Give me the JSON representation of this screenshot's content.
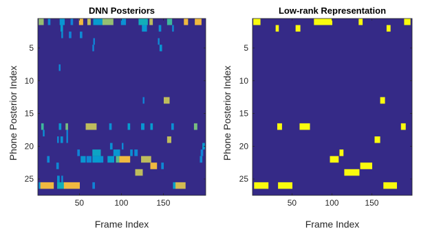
{
  "chart_data": [
    {
      "type": "heatmap",
      "title": "DNN Posteriors",
      "xlabel": "Frame Index",
      "ylabel": "Phone Posterior Index",
      "xlim": [
        1,
        200
      ],
      "ylim": [
        1,
        27
      ],
      "y_reversed": true,
      "x_ticks": [
        50,
        100,
        150
      ],
      "y_ticks": [
        5,
        10,
        15,
        20,
        25
      ],
      "colormap": "parula",
      "background_color": "#352a87",
      "cells": [
        {
          "row": 1,
          "x0": 2,
          "x1": 7,
          "v": 0.85
        },
        {
          "row": 1,
          "x0": 13,
          "x1": 15,
          "v": 0.35
        },
        {
          "row": 1,
          "x0": 27,
          "x1": 32,
          "v": 0.45
        },
        {
          "row": 1,
          "x0": 40,
          "x1": 42,
          "v": 0.3
        },
        {
          "row": 1,
          "x0": 50,
          "x1": 54,
          "v": 0.95
        },
        {
          "row": 1,
          "x0": 60,
          "x1": 63,
          "v": 0.9
        },
        {
          "row": 1,
          "x0": 67,
          "x1": 78,
          "v": 0.5
        },
        {
          "row": 1,
          "x0": 78,
          "x1": 90,
          "v": 0.85
        },
        {
          "row": 1,
          "x0": 100,
          "x1": 105,
          "v": 0.4
        },
        {
          "row": 1,
          "x0": 121,
          "x1": 131,
          "v": 0.6
        },
        {
          "row": 1,
          "x0": 134,
          "x1": 137,
          "v": 0.9
        },
        {
          "row": 1,
          "x0": 155,
          "x1": 160,
          "v": 0.7
        },
        {
          "row": 1,
          "x0": 175,
          "x1": 179,
          "v": 0.95
        },
        {
          "row": 1,
          "x0": 188,
          "x1": 195,
          "v": 0.95
        },
        {
          "row": 2,
          "x0": 28,
          "x1": 30,
          "v": 0.5
        },
        {
          "row": 2,
          "x0": 125,
          "x1": 130,
          "v": 0.45
        },
        {
          "row": 2,
          "x0": 145,
          "x1": 147,
          "v": 0.4
        },
        {
          "row": 2,
          "x0": 161,
          "x1": 162,
          "v": 0.35
        },
        {
          "row": 3,
          "x0": 29,
          "x1": 30,
          "v": 0.4
        },
        {
          "row": 3,
          "x0": 38,
          "x1": 40,
          "v": 0.3
        },
        {
          "row": 3,
          "x0": 51,
          "x1": 53,
          "v": 0.35
        },
        {
          "row": 4,
          "x0": 67,
          "x1": 68,
          "v": 0.3
        },
        {
          "row": 4,
          "x0": 144,
          "x1": 145,
          "v": 0.35
        },
        {
          "row": 5,
          "x0": 66,
          "x1": 67,
          "v": 0.3
        },
        {
          "row": 5,
          "x0": 146,
          "x1": 148,
          "v": 0.45
        },
        {
          "row": 8,
          "x0": 26,
          "x1": 27,
          "v": 0.35
        },
        {
          "row": 13,
          "x0": 126,
          "x1": 127,
          "v": 0.3
        },
        {
          "row": 13,
          "x0": 151,
          "x1": 157,
          "v": 0.9
        },
        {
          "row": 17,
          "x0": 5,
          "x1": 7,
          "v": 0.7
        },
        {
          "row": 17,
          "x0": 26,
          "x1": 28,
          "v": 0.45
        },
        {
          "row": 17,
          "x0": 34,
          "x1": 36,
          "v": 0.8
        },
        {
          "row": 17,
          "x0": 58,
          "x1": 70,
          "v": 0.9
        },
        {
          "row": 17,
          "x0": 86,
          "x1": 88,
          "v": 0.4
        },
        {
          "row": 17,
          "x0": 108,
          "x1": 110,
          "v": 0.5
        },
        {
          "row": 17,
          "x0": 124,
          "x1": 127,
          "v": 0.45
        },
        {
          "row": 17,
          "x0": 135,
          "x1": 137,
          "v": 0.5
        },
        {
          "row": 17,
          "x0": 160,
          "x1": 162,
          "v": 0.4
        },
        {
          "row": 17,
          "x0": 187,
          "x1": 190,
          "v": 0.8
        },
        {
          "row": 18,
          "x0": 7,
          "x1": 8,
          "v": 0.4
        },
        {
          "row": 18,
          "x0": 35,
          "x1": 36,
          "v": 0.3
        },
        {
          "row": 19,
          "x0": 24,
          "x1": 25,
          "v": 0.35
        },
        {
          "row": 19,
          "x0": 28,
          "x1": 30,
          "v": 0.4
        },
        {
          "row": 19,
          "x0": 35,
          "x1": 36,
          "v": 0.35
        },
        {
          "row": 19,
          "x0": 155,
          "x1": 159,
          "v": 0.9
        },
        {
          "row": 20,
          "x0": 87,
          "x1": 89,
          "v": 0.4
        },
        {
          "row": 20,
          "x0": 101,
          "x1": 102,
          "v": 0.35
        },
        {
          "row": 20,
          "x0": 197,
          "x1": 199,
          "v": 0.5
        },
        {
          "row": 21,
          "x0": 48,
          "x1": 50,
          "v": 0.3
        },
        {
          "row": 21,
          "x0": 66,
          "x1": 75,
          "v": 0.55
        },
        {
          "row": 21,
          "x0": 91,
          "x1": 98,
          "v": 0.45
        },
        {
          "row": 21,
          "x0": 111,
          "x1": 113,
          "v": 0.4
        },
        {
          "row": 21,
          "x0": 116,
          "x1": 119,
          "v": 0.35
        },
        {
          "row": 21,
          "x0": 195,
          "x1": 197,
          "v": 0.3
        },
        {
          "row": 22,
          "x0": 12,
          "x1": 14,
          "v": 0.35
        },
        {
          "row": 22,
          "x0": 52,
          "x1": 57,
          "v": 0.45
        },
        {
          "row": 22,
          "x0": 59,
          "x1": 64,
          "v": 0.35
        },
        {
          "row": 22,
          "x0": 66,
          "x1": 75,
          "v": 0.5
        },
        {
          "row": 22,
          "x0": 75,
          "x1": 78,
          "v": 0.4
        },
        {
          "row": 22,
          "x0": 84,
          "x1": 91,
          "v": 0.5
        },
        {
          "row": 22,
          "x0": 94,
          "x1": 97,
          "v": 0.75
        },
        {
          "row": 22,
          "x0": 98,
          "x1": 110,
          "v": 0.95
        },
        {
          "row": 22,
          "x0": 124,
          "x1": 135,
          "v": 0.9
        },
        {
          "row": 22,
          "x0": 194,
          "x1": 196,
          "v": 0.35
        },
        {
          "row": 23,
          "x0": 23,
          "x1": 25,
          "v": 0.35
        },
        {
          "row": 23,
          "x0": 135,
          "x1": 142,
          "v": 0.95
        },
        {
          "row": 23,
          "x0": 148,
          "x1": 150,
          "v": 0.35
        },
        {
          "row": 24,
          "x0": 117,
          "x1": 125,
          "v": 0.9
        },
        {
          "row": 25,
          "x0": 24,
          "x1": 26,
          "v": 0.4
        },
        {
          "row": 25,
          "x0": 29,
          "x1": 30,
          "v": 0.35
        },
        {
          "row": 26,
          "x0": 2,
          "x1": 4,
          "v": 0.45
        },
        {
          "row": 26,
          "x0": 4,
          "x1": 19,
          "v": 0.95
        },
        {
          "row": 26,
          "x0": 24,
          "x1": 32,
          "v": 0.6
        },
        {
          "row": 26,
          "x0": 32,
          "x1": 50,
          "v": 0.95
        },
        {
          "row": 26,
          "x0": 66,
          "x1": 68,
          "v": 0.3
        },
        {
          "row": 26,
          "x0": 162,
          "x1": 165,
          "v": 0.55
        },
        {
          "row": 26,
          "x0": 165,
          "x1": 176,
          "v": 0.92
        }
      ]
    },
    {
      "type": "heatmap",
      "title": "Low-rank Representation",
      "xlabel": "Frame Index",
      "ylabel": "Phone Posterior Index",
      "xlim": [
        1,
        200
      ],
      "ylim": [
        1,
        27
      ],
      "y_reversed": true,
      "x_ticks": [
        50,
        100,
        150
      ],
      "y_ticks": [
        5,
        10,
        15,
        20,
        25
      ],
      "colormap": "parula",
      "background_color": "#352a87",
      "cells": [
        {
          "row": 1,
          "x0": 2,
          "x1": 10,
          "v": 1
        },
        {
          "row": 1,
          "x0": 78,
          "x1": 100,
          "v": 1
        },
        {
          "row": 1,
          "x0": 134,
          "x1": 138,
          "v": 1
        },
        {
          "row": 1,
          "x0": 191,
          "x1": 198,
          "v": 1
        },
        {
          "row": 2,
          "x0": 30,
          "x1": 33,
          "v": 1
        },
        {
          "row": 2,
          "x0": 55,
          "x1": 60,
          "v": 1
        },
        {
          "row": 2,
          "x0": 169,
          "x1": 173,
          "v": 1
        },
        {
          "row": 13,
          "x0": 161,
          "x1": 166,
          "v": 1
        },
        {
          "row": 17,
          "x0": 32,
          "x1": 37,
          "v": 1
        },
        {
          "row": 17,
          "x0": 60,
          "x1": 72,
          "v": 1
        },
        {
          "row": 17,
          "x0": 187,
          "x1": 192,
          "v": 1
        },
        {
          "row": 19,
          "x0": 154,
          "x1": 160,
          "v": 1
        },
        {
          "row": 21,
          "x0": 110,
          "x1": 114,
          "v": 1
        },
        {
          "row": 22,
          "x0": 98,
          "x1": 108,
          "v": 1
        },
        {
          "row": 23,
          "x0": 136,
          "x1": 150,
          "v": 1
        },
        {
          "row": 24,
          "x0": 116,
          "x1": 134,
          "v": 1
        },
        {
          "row": 26,
          "x0": 3,
          "x1": 20,
          "v": 1
        },
        {
          "row": 26,
          "x0": 33,
          "x1": 50,
          "v": 1
        },
        {
          "row": 26,
          "x0": 165,
          "x1": 181,
          "v": 1
        }
      ]
    }
  ]
}
